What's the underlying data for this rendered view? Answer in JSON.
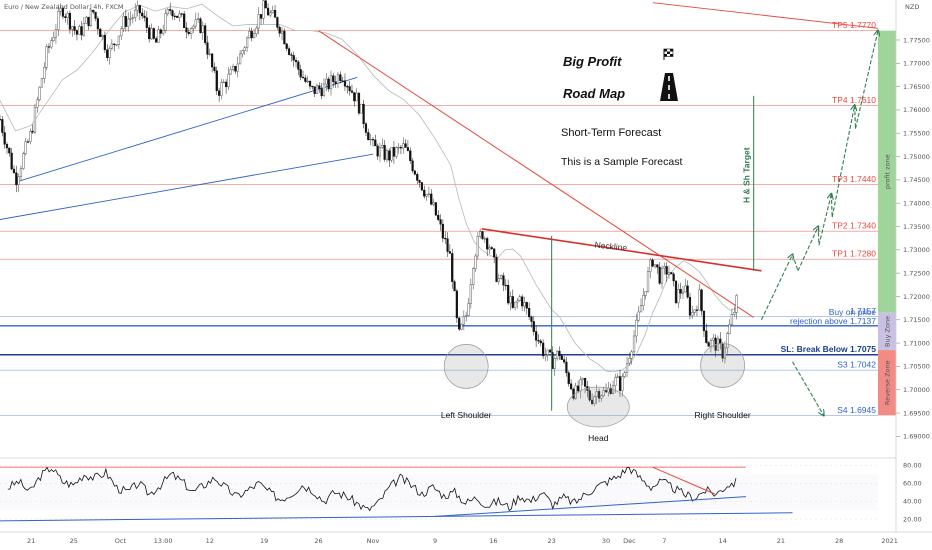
{
  "chart_data": {
    "type": "candlestick",
    "symbol": "Euro / New Zealand Dollar, 4h, FXCM",
    "currency": "NZD",
    "ylim": [
      1.686,
      1.781
    ],
    "xlim": [
      0,
      113
    ],
    "y_ticks": [
      "1.77500",
      "1.77000",
      "1.76500",
      "1.76000",
      "1.75500",
      "1.75000",
      "1.74500",
      "1.74000",
      "1.73500",
      "1.73000",
      "1.72500",
      "1.72000",
      "1.71500",
      "1.71000",
      "1.70500",
      "1.70000",
      "1.69500",
      "1.69000"
    ],
    "y_tick_values": [
      1.775,
      1.77,
      1.765,
      1.76,
      1.755,
      1.75,
      1.745,
      1.74,
      1.735,
      1.73,
      1.725,
      1.72,
      1.715,
      1.71,
      1.705,
      1.7,
      1.695,
      1.69
    ],
    "x_ticks": [
      {
        "label": "21",
        "x": 4
      },
      {
        "label": "25",
        "x": 9.5
      },
      {
        "label": "Oct",
        "x": 15.5
      },
      {
        "label": "13:00",
        "x": 21
      },
      {
        "label": "12",
        "x": 27
      },
      {
        "label": "19",
        "x": 34
      },
      {
        "label": "26",
        "x": 41
      },
      {
        "label": "Nov",
        "x": 48
      },
      {
        "label": "9",
        "x": 56
      },
      {
        "label": "16",
        "x": 63.5
      },
      {
        "label": "23",
        "x": 71
      },
      {
        "label": "30",
        "x": 78
      },
      {
        "label": "Dec",
        "x": 81
      },
      {
        "label": "7",
        "x": 85.5
      },
      {
        "label": "14",
        "x": 93
      },
      {
        "label": "21",
        "x": 100.5
      },
      {
        "label": "28",
        "x": 108
      },
      {
        "label": "2021",
        "x": 114.5
      }
    ],
    "series_path": [
      [
        0,
        1.758
      ],
      [
        2,
        1.745
      ],
      [
        4,
        1.755
      ],
      [
        6,
        1.772
      ],
      [
        8,
        1.782
      ],
      [
        10,
        1.776
      ],
      [
        12,
        1.781
      ],
      [
        14,
        1.772
      ],
      [
        16,
        1.779
      ],
      [
        18,
        1.781
      ],
      [
        20,
        1.774
      ],
      [
        22,
        1.782
      ],
      [
        24,
        1.778
      ],
      [
        26,
        1.778
      ],
      [
        28,
        1.764
      ],
      [
        30,
        1.768
      ],
      [
        32,
        1.776
      ],
      [
        34,
        1.782
      ],
      [
        36,
        1.778
      ],
      [
        38,
        1.77
      ],
      [
        40,
        1.764
      ],
      [
        42,
        1.765
      ],
      [
        44,
        1.768
      ],
      [
        46,
        1.762
      ],
      [
        48,
        1.752
      ],
      [
        50,
        1.75
      ],
      [
        52,
        1.752
      ],
      [
        54,
        1.745
      ],
      [
        56,
        1.738
      ],
      [
        58,
        1.728
      ],
      [
        59,
        1.711
      ],
      [
        60,
        1.716
      ],
      [
        61,
        1.729
      ],
      [
        62,
        1.734
      ],
      [
        63,
        1.731
      ],
      [
        64,
        1.724
      ],
      [
        65,
        1.722
      ],
      [
        66,
        1.717
      ],
      [
        67,
        1.72
      ],
      [
        68,
        1.716
      ],
      [
        69,
        1.712
      ],
      [
        70,
        1.708
      ],
      [
        71,
        1.706
      ],
      [
        72,
        1.708
      ],
      [
        73,
        1.703
      ],
      [
        74,
        1.699
      ],
      [
        75,
        1.701
      ],
      [
        76,
        1.698
      ],
      [
        77,
        1.7
      ],
      [
        78,
        1.699
      ],
      [
        79,
        1.702
      ],
      [
        80,
        1.701
      ],
      [
        81,
        1.708
      ],
      [
        82,
        1.714
      ],
      [
        83,
        1.722
      ],
      [
        84,
        1.728
      ],
      [
        85,
        1.724
      ],
      [
        86,
        1.726
      ],
      [
        87,
        1.72
      ],
      [
        88,
        1.722
      ],
      [
        89,
        1.716
      ],
      [
        90,
        1.72
      ],
      [
        91,
        1.71
      ],
      [
        92,
        1.71
      ],
      [
        93,
        1.708
      ],
      [
        94,
        1.714
      ],
      [
        95,
        1.72
      ]
    ],
    "levels": [
      {
        "name": "TP5",
        "label": "TP5 1.7770",
        "value": 1.777,
        "color": "#e8483b"
      },
      {
        "name": "TP4",
        "label": "TP4 1.7610",
        "value": 1.761,
        "color": "#e8483b"
      },
      {
        "name": "TP3",
        "label": "TP3 1.7440",
        "value": 1.744,
        "color": "#e8483b"
      },
      {
        "name": "TP2",
        "label": "TP2 1.7340",
        "value": 1.734,
        "color": "#e8483b"
      },
      {
        "name": "TP1",
        "label": "TP1 1.7280",
        "value": 1.728,
        "color": "#e8483b"
      },
      {
        "name": "level-17157",
        "label": "1.7157",
        "value": 1.7157,
        "color": "#2f63c8"
      },
      {
        "name": "buy",
        "label": "Buy on price",
        "label2": "rejection above 1.7137",
        "value": 1.7137,
        "color": "#2f63c8"
      },
      {
        "name": "sl",
        "label": "SL: Break Below 1.7075",
        "value": 1.7075,
        "color": "#1d3f8f"
      },
      {
        "name": "S3",
        "label": "S3 1.7042",
        "value": 1.7042,
        "color": "#2f63c8"
      },
      {
        "name": "S4",
        "label": "S4 1.6945",
        "value": 1.6945,
        "color": "#2f63c8"
      }
    ],
    "zones": [
      {
        "label": "profit zone",
        "from": 1.7165,
        "to": 1.777,
        "color": "#9fd49a"
      },
      {
        "label": "Buy Zone",
        "from": 1.7085,
        "to": 1.7165,
        "color": "#c9c1e3"
      },
      {
        "label": "Reverse Zone",
        "from": 1.6945,
        "to": 1.7085,
        "color": "#f28b86"
      }
    ],
    "pattern_labels": {
      "left_shoulder": "Left Shoulder",
      "head": "Head",
      "right_shoulder": "Right Shoulder",
      "neckline": "Neckline",
      "target": "H & Sh Target"
    },
    "neckline": {
      "from": [
        62,
        1.7345
      ],
      "to": [
        98,
        1.7255
      ]
    },
    "downtrend": {
      "from": [
        41,
        1.777
      ],
      "to": [
        97,
        1.7155
      ]
    },
    "target_line": {
      "x": 97,
      "from": 1.7255,
      "to": 1.763
    },
    "head_measure": {
      "x": 71,
      "from": 1.6955,
      "to": 1.733
    },
    "projected_path": [
      [
        98,
        1.715
      ],
      [
        102,
        1.729
      ],
      [
        102.7,
        1.7255
      ],
      [
        105.3,
        1.735
      ],
      [
        105.4,
        1.731
      ],
      [
        107,
        1.742
      ],
      [
        107.1,
        1.737
      ],
      [
        110,
        1.761
      ],
      [
        110.1,
        1.756
      ],
      [
        113,
        1.777
      ]
    ],
    "down_projection": {
      "from": [
        102,
        1.706
      ],
      "to": [
        106,
        1.6945
      ]
    },
    "oscillator": {
      "y_ticks": [
        "80.00",
        "60.00",
        "40.00",
        "20.00"
      ],
      "y_tick_values": [
        80,
        60,
        40,
        20
      ],
      "ylim": [
        10,
        86
      ],
      "upper_line": 78,
      "values": [
        55,
        62,
        50,
        68,
        78,
        62,
        58,
        70,
        66,
        72,
        55,
        50,
        60,
        48,
        58,
        70,
        62,
        50,
        58,
        66,
        55,
        45,
        52,
        60,
        50,
        42,
        48,
        58,
        52,
        40,
        50,
        46,
        38,
        30,
        38,
        55,
        66,
        58,
        48,
        56,
        46,
        50,
        38,
        44,
        35,
        40,
        33,
        46,
        40,
        50,
        36,
        44,
        38,
        48,
        56,
        62,
        68,
        78,
        66,
        56,
        62,
        55,
        48,
        44,
        52,
        48,
        58,
        62
      ]
    },
    "annotations": [
      {
        "label": "Big Profit"
      },
      {
        "label": "Road Map"
      },
      {
        "label": "Short-Term Forecast"
      },
      {
        "label": "This is a Sample Forecast"
      }
    ]
  }
}
